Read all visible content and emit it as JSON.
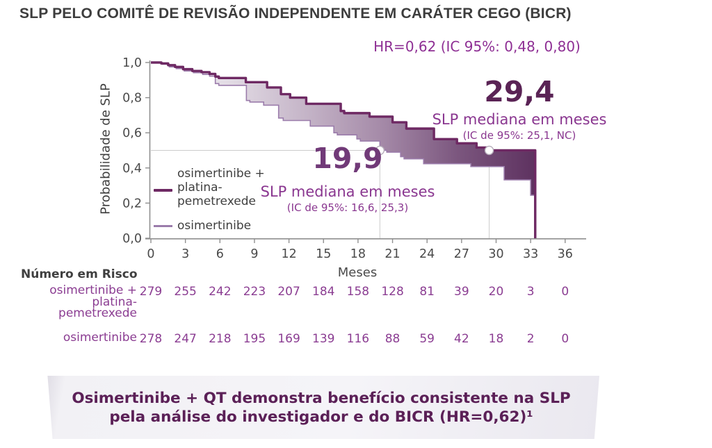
{
  "title": "SLP PELO COMITÊ DE REVISÃO INDEPENDENTE EM CARÁTER CEGO (BICR)",
  "hr_note": "HR=0,62 (IC 95%: 0,48, 0,80)",
  "axes": {
    "y_label": "Probabilidade de SLP",
    "x_label": "Meses",
    "y_ticks": [
      "1,0",
      "0,8",
      "0,6",
      "0,4",
      "0,2",
      "0,0"
    ],
    "x_ticks": [
      "0",
      "3",
      "6",
      "9",
      "12",
      "15",
      "18",
      "21",
      "24",
      "27",
      "30",
      "33",
      "36"
    ]
  },
  "legend": {
    "items": [
      {
        "key": "combo",
        "lines": [
          "osimertinibe +",
          "platina-",
          "pemetrexede"
        ]
      },
      {
        "key": "osi",
        "lines": [
          "osimertinibe"
        ]
      }
    ]
  },
  "annotations": {
    "median_osi": {
      "value": "19,9",
      "caption": "SLP mediana em meses",
      "ci": "(IC de 95%: 16,6, 25,3)"
    },
    "median_combo": {
      "value": "29,4",
      "caption": "SLP mediana em meses",
      "ci": "(IC de 95%: 25,1, NC)"
    }
  },
  "risk_table": {
    "heading": "Número em Risco",
    "rows": [
      {
        "label_lines": [
          "osimertinibe + platina-",
          "pemetrexede"
        ],
        "values": [
          "279",
          "255",
          "242",
          "223",
          "207",
          "184",
          "158",
          "128",
          "81",
          "39",
          "20",
          "3",
          "0"
        ]
      },
      {
        "label_lines": [
          "osimertinibe"
        ],
        "values": [
          "278",
          "247",
          "218",
          "195",
          "169",
          "139",
          "116",
          "88",
          "59",
          "42",
          "18",
          "2",
          "0"
        ]
      }
    ]
  },
  "banner": {
    "line1": "Osimertinibe + QT demonstra benefício consistente na SLP",
    "line2": "pela análise do investigador e do BICR (HR=0,62)¹"
  },
  "colors": {
    "title_text": "#3d3d3d",
    "purple_text": "#8e2f94",
    "median_osi_value": "#713a78",
    "median_combo_value": "#5a2355",
    "curve_combo": "#6e2963",
    "curve_osi": "#9b7cab",
    "axis": "#8f8f8f",
    "tick_text": "#4a4a4a",
    "risk_text": "#8b3d92",
    "reference_line": "#cccccc",
    "banner_text": "#5b2057",
    "fill_gradient": [
      "#f6f4f7",
      "#e3dce5",
      "#c5b5c8",
      "#a58aa8",
      "#7b567e",
      "#5e3260"
    ]
  },
  "chart_data": {
    "type": "line",
    "subtype": "kaplan-meier-step",
    "title": "SLP pelo BICR",
    "xlabel": "Meses",
    "ylabel": "Probabilidade de SLP",
    "xlim": [
      0,
      36
    ],
    "ylim": [
      0.0,
      1.0
    ],
    "x_tick_step": 3,
    "y_tick_step": 0.2,
    "grid": false,
    "legend_position": "lower-left-inside",
    "hazard_ratio": {
      "label": "HR=0,62 (IC 95%: 0,48, 0,80)",
      "value": 0.62,
      "ci_95": [
        0.48,
        0.8
      ]
    },
    "median_markers_at_probability": 0.5,
    "series": [
      {
        "name": "osimertinibe + platina-pemetrexede",
        "median_months": 29.4,
        "median_ci_95": "25,1, NC",
        "line": "thick",
        "steps": [
          [
            0,
            1.0
          ],
          [
            0.9,
            0.995
          ],
          [
            1.5,
            0.985
          ],
          [
            2.1,
            0.975
          ],
          [
            2.8,
            0.962
          ],
          [
            3.6,
            0.952
          ],
          [
            4.4,
            0.945
          ],
          [
            5.1,
            0.935
          ],
          [
            5.6,
            0.92
          ],
          [
            5.9,
            0.912
          ],
          [
            8.25,
            0.888
          ],
          [
            10.1,
            0.858
          ],
          [
            11.3,
            0.82
          ],
          [
            12.1,
            0.8
          ],
          [
            13.5,
            0.765
          ],
          [
            16.5,
            0.724
          ],
          [
            16.8,
            0.712
          ],
          [
            19.0,
            0.692
          ],
          [
            21.0,
            0.66
          ],
          [
            22.2,
            0.624
          ],
          [
            24.6,
            0.564
          ],
          [
            26.6,
            0.54
          ],
          [
            28.3,
            0.516
          ],
          [
            29.4,
            0.5
          ],
          [
            33.1,
            0.5
          ],
          [
            33.4,
            0.0
          ]
        ]
      },
      {
        "name": "osimertinibe",
        "median_months": 19.9,
        "median_ci_95": "16,6, 25,3",
        "line": "thin",
        "steps": [
          [
            0,
            1.0
          ],
          [
            1.0,
            0.99
          ],
          [
            1.6,
            0.975
          ],
          [
            2.2,
            0.965
          ],
          [
            2.9,
            0.952
          ],
          [
            3.7,
            0.942
          ],
          [
            4.5,
            0.932
          ],
          [
            5.1,
            0.922
          ],
          [
            5.6,
            0.88
          ],
          [
            5.9,
            0.87
          ],
          [
            8.3,
            0.784
          ],
          [
            8.6,
            0.775
          ],
          [
            9.8,
            0.757
          ],
          [
            11.1,
            0.684
          ],
          [
            11.5,
            0.67
          ],
          [
            13.85,
            0.638
          ],
          [
            15.9,
            0.6
          ],
          [
            16.2,
            0.588
          ],
          [
            17.9,
            0.565
          ],
          [
            18.2,
            0.553
          ],
          [
            19.9,
            0.5
          ],
          [
            20.5,
            0.49
          ],
          [
            21.7,
            0.464
          ],
          [
            22.0,
            0.452
          ],
          [
            23.7,
            0.424
          ],
          [
            27.8,
            0.408
          ],
          [
            30.7,
            0.332
          ],
          [
            33.0,
            0.245
          ],
          [
            33.35,
            0.0
          ]
        ]
      }
    ],
    "number_at_risk": {
      "months": [
        0,
        3,
        6,
        9,
        12,
        15,
        18,
        21,
        24,
        27,
        30,
        33,
        36
      ],
      "osimertinibe + platina-pemetrexede": [
        279,
        255,
        242,
        223,
        207,
        184,
        158,
        128,
        81,
        39,
        20,
        3,
        0
      ],
      "osimertinibe": [
        278,
        247,
        218,
        195,
        169,
        139,
        116,
        88,
        59,
        42,
        18,
        2,
        0
      ]
    }
  }
}
